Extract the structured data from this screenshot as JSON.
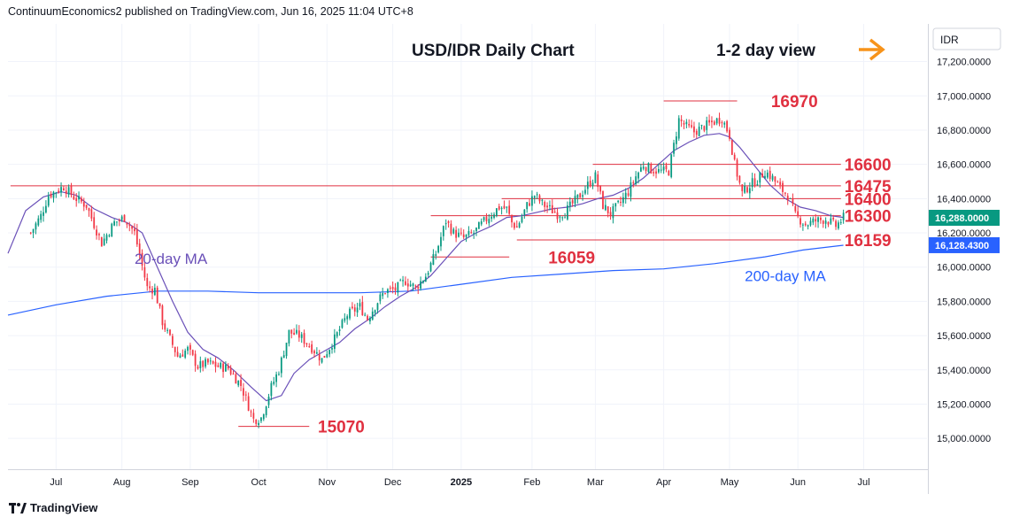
{
  "header": {
    "publisher_line": "ContinuumEconomics2 published on TradingView.com, Jun 16, 2025 11:04 UTC+8"
  },
  "footer": {
    "brand": "TradingView"
  },
  "arrow_icon": "right-arrow-icon",
  "chart_data": {
    "type": "candlestick",
    "title": "USD/IDR Daily Chart",
    "subtitle": "1-2 day view",
    "currency": "IDR",
    "y_axis_ticks": [
      "17,200.0000",
      "17,000.0000",
      "16,800.0000",
      "16,600.0000",
      "16,400.0000",
      "16,200.0000",
      "16,000.0000",
      "15,800.0000",
      "15,600.0000",
      "15,400.0000",
      "15,200.0000",
      "15,000.0000"
    ],
    "y_tick_values": [
      17200,
      17000,
      16800,
      16600,
      16400,
      16200,
      16000,
      15800,
      15600,
      15400,
      15200,
      15000
    ],
    "ylim": [
      14820,
      17420
    ],
    "x_axis_labels": [
      {
        "label": "Jul",
        "t": 10,
        "bold": false
      },
      {
        "label": "Aug",
        "t": 36,
        "bold": false
      },
      {
        "label": "Sep",
        "t": 63,
        "bold": false
      },
      {
        "label": "Oct",
        "t": 90,
        "bold": false
      },
      {
        "label": "Nov",
        "t": 117,
        "bold": false
      },
      {
        "label": "Dec",
        "t": 143,
        "bold": false
      },
      {
        "label": "2025",
        "t": 170,
        "bold": true
      },
      {
        "label": "Feb",
        "t": 198,
        "bold": false
      },
      {
        "label": "Mar",
        "t": 223,
        "bold": false
      },
      {
        "label": "Apr",
        "t": 250,
        "bold": false
      },
      {
        "label": "May",
        "t": 276,
        "bold": false
      },
      {
        "label": "Jun",
        "t": 303,
        "bold": false
      },
      {
        "label": "Jul",
        "t": 329,
        "bold": false
      }
    ],
    "x_range": [
      -9,
      354
    ],
    "colors": {
      "up": "#089981",
      "down": "#f23645",
      "ma20": "#6a50b8",
      "ma200": "#2962ff",
      "level": "#e03040",
      "price_tag": "#089981",
      "ma200_tag": "#2962ff",
      "arrow": "#f7931a"
    },
    "levels": [
      {
        "label": "16970",
        "value": 16970,
        "t0": 250,
        "t1": 279,
        "label_t": 291
      },
      {
        "label": "16600",
        "value": 16600,
        "t0": 222,
        "t1": 320,
        "label_t": 320
      },
      {
        "label": "16475",
        "value": 16475,
        "t0": -8,
        "t1": 320,
        "label_t": 320
      },
      {
        "label": "16400",
        "value": 16400,
        "t0": 186,
        "t1": 320,
        "label_t": 320
      },
      {
        "label": "16300",
        "value": 16300,
        "t0": 158,
        "t1": 320,
        "label_t": 320
      },
      {
        "label": "16159",
        "value": 16159,
        "t0": 192,
        "t1": 320,
        "label_t": 320
      },
      {
        "label": "16059",
        "value": 16059,
        "t0": 158,
        "t1": 189,
        "label_t": 203
      },
      {
        "label": "15070",
        "value": 15070,
        "t0": 82,
        "t1": 110,
        "label_t": 112
      }
    ],
    "annotations": [
      {
        "label": "20-day MA",
        "t": 41,
        "value": 16060,
        "color": "#6a50b8"
      },
      {
        "label": "200-day MA",
        "t": 282,
        "value": 15960,
        "color": "#2962ff"
      }
    ],
    "price_tags": [
      {
        "label": "16,288.0000",
        "value": 16288,
        "kind": "last"
      },
      {
        "label": "16,128.4300",
        "value": 16128,
        "kind": "ma200"
      }
    ],
    "anchors": [
      [
        0,
        16200
      ],
      [
        4,
        16300
      ],
      [
        7,
        16420
      ],
      [
        13,
        16470
      ],
      [
        17,
        16410
      ],
      [
        22,
        16360
      ],
      [
        28,
        16140
      ],
      [
        33,
        16260
      ],
      [
        37,
        16290
      ],
      [
        41,
        16200
      ],
      [
        43,
        16070
      ],
      [
        46,
        15880
      ],
      [
        49,
        15870
      ],
      [
        52,
        15680
      ],
      [
        58,
        15480
      ],
      [
        62,
        15520
      ],
      [
        66,
        15420
      ],
      [
        70,
        15440
      ],
      [
        74,
        15420
      ],
      [
        78,
        15410
      ],
      [
        83,
        15310
      ],
      [
        88,
        15110
      ],
      [
        91,
        15120
      ],
      [
        95,
        15300
      ],
      [
        98,
        15400
      ],
      [
        102,
        15620
      ],
      [
        106,
        15600
      ],
      [
        111,
        15530
      ],
      [
        115,
        15460
      ],
      [
        120,
        15580
      ],
      [
        125,
        15720
      ],
      [
        130,
        15770
      ],
      [
        133,
        15700
      ],
      [
        137,
        15800
      ],
      [
        140,
        15860
      ],
      [
        144,
        15870
      ],
      [
        148,
        15920
      ],
      [
        152,
        15880
      ],
      [
        156,
        15950
      ],
      [
        160,
        16080
      ],
      [
        164,
        16270
      ],
      [
        167,
        16200
      ],
      [
        171,
        16170
      ],
      [
        175,
        16200
      ],
      [
        178,
        16250
      ],
      [
        182,
        16310
      ],
      [
        185,
        16350
      ],
      [
        188,
        16340
      ],
      [
        190,
        16260
      ],
      [
        192,
        16230
      ],
      [
        196,
        16360
      ],
      [
        199,
        16420
      ],
      [
        202,
        16370
      ],
      [
        205,
        16340
      ],
      [
        208,
        16310
      ],
      [
        211,
        16320
      ],
      [
        214,
        16370
      ],
      [
        217,
        16420
      ],
      [
        220,
        16480
      ],
      [
        223,
        16530
      ],
      [
        226,
        16360
      ],
      [
        229,
        16310
      ],
      [
        233,
        16380
      ],
      [
        236,
        16440
      ],
      [
        239,
        16530
      ],
      [
        242,
        16600
      ],
      [
        245,
        16570
      ],
      [
        248,
        16560
      ],
      [
        252,
        16560
      ],
      [
        256,
        16860
      ],
      [
        259,
        16820
      ],
      [
        262,
        16790
      ],
      [
        266,
        16820
      ],
      [
        270,
        16850
      ],
      [
        273,
        16870
      ],
      [
        276,
        16770
      ],
      [
        278,
        16600
      ],
      [
        281,
        16430
      ],
      [
        284,
        16480
      ],
      [
        287,
        16510
      ],
      [
        290,
        16560
      ],
      [
        293,
        16520
      ],
      [
        296,
        16460
      ],
      [
        299,
        16420
      ],
      [
        302,
        16300
      ],
      [
        306,
        16250
      ],
      [
        310,
        16270
      ],
      [
        314,
        16280
      ],
      [
        318,
        16240
      ],
      [
        321,
        16288
      ]
    ],
    "ma20": [
      [
        -9,
        16080
      ],
      [
        -2,
        16330
      ],
      [
        5,
        16410
      ],
      [
        12,
        16440
      ],
      [
        18,
        16420
      ],
      [
        25,
        16340
      ],
      [
        32,
        16290
      ],
      [
        38,
        16260
      ],
      [
        44,
        16200
      ],
      [
        50,
        16000
      ],
      [
        56,
        15800
      ],
      [
        62,
        15620
      ],
      [
        68,
        15520
      ],
      [
        74,
        15470
      ],
      [
        80,
        15400
      ],
      [
        87,
        15300
      ],
      [
        93,
        15220
      ],
      [
        99,
        15250
      ],
      [
        104,
        15380
      ],
      [
        110,
        15460
      ],
      [
        116,
        15510
      ],
      [
        122,
        15560
      ],
      [
        128,
        15640
      ],
      [
        134,
        15700
      ],
      [
        140,
        15770
      ],
      [
        146,
        15830
      ],
      [
        152,
        15880
      ],
      [
        158,
        15950
      ],
      [
        164,
        16050
      ],
      [
        170,
        16150
      ],
      [
        176,
        16200
      ],
      [
        182,
        16240
      ],
      [
        188,
        16290
      ],
      [
        194,
        16300
      ],
      [
        200,
        16320
      ],
      [
        206,
        16340
      ],
      [
        212,
        16350
      ],
      [
        218,
        16370
      ],
      [
        224,
        16400
      ],
      [
        230,
        16420
      ],
      [
        236,
        16460
      ],
      [
        242,
        16520
      ],
      [
        248,
        16600
      ],
      [
        254,
        16680
      ],
      [
        260,
        16730
      ],
      [
        266,
        16770
      ],
      [
        272,
        16780
      ],
      [
        276,
        16760
      ],
      [
        280,
        16700
      ],
      [
        286,
        16590
      ],
      [
        292,
        16480
      ],
      [
        298,
        16400
      ],
      [
        304,
        16350
      ],
      [
        310,
        16330
      ],
      [
        316,
        16300
      ],
      [
        321,
        16290
      ]
    ],
    "ma200": [
      [
        -9,
        15720
      ],
      [
        10,
        15780
      ],
      [
        30,
        15830
      ],
      [
        50,
        15860
      ],
      [
        70,
        15860
      ],
      [
        90,
        15850
      ],
      [
        110,
        15850
      ],
      [
        130,
        15850
      ],
      [
        150,
        15860
      ],
      [
        170,
        15900
      ],
      [
        190,
        15940
      ],
      [
        210,
        15960
      ],
      [
        230,
        15980
      ],
      [
        250,
        15990
      ],
      [
        270,
        16020
      ],
      [
        290,
        16060
      ],
      [
        305,
        16100
      ],
      [
        321,
        16128
      ]
    ]
  }
}
